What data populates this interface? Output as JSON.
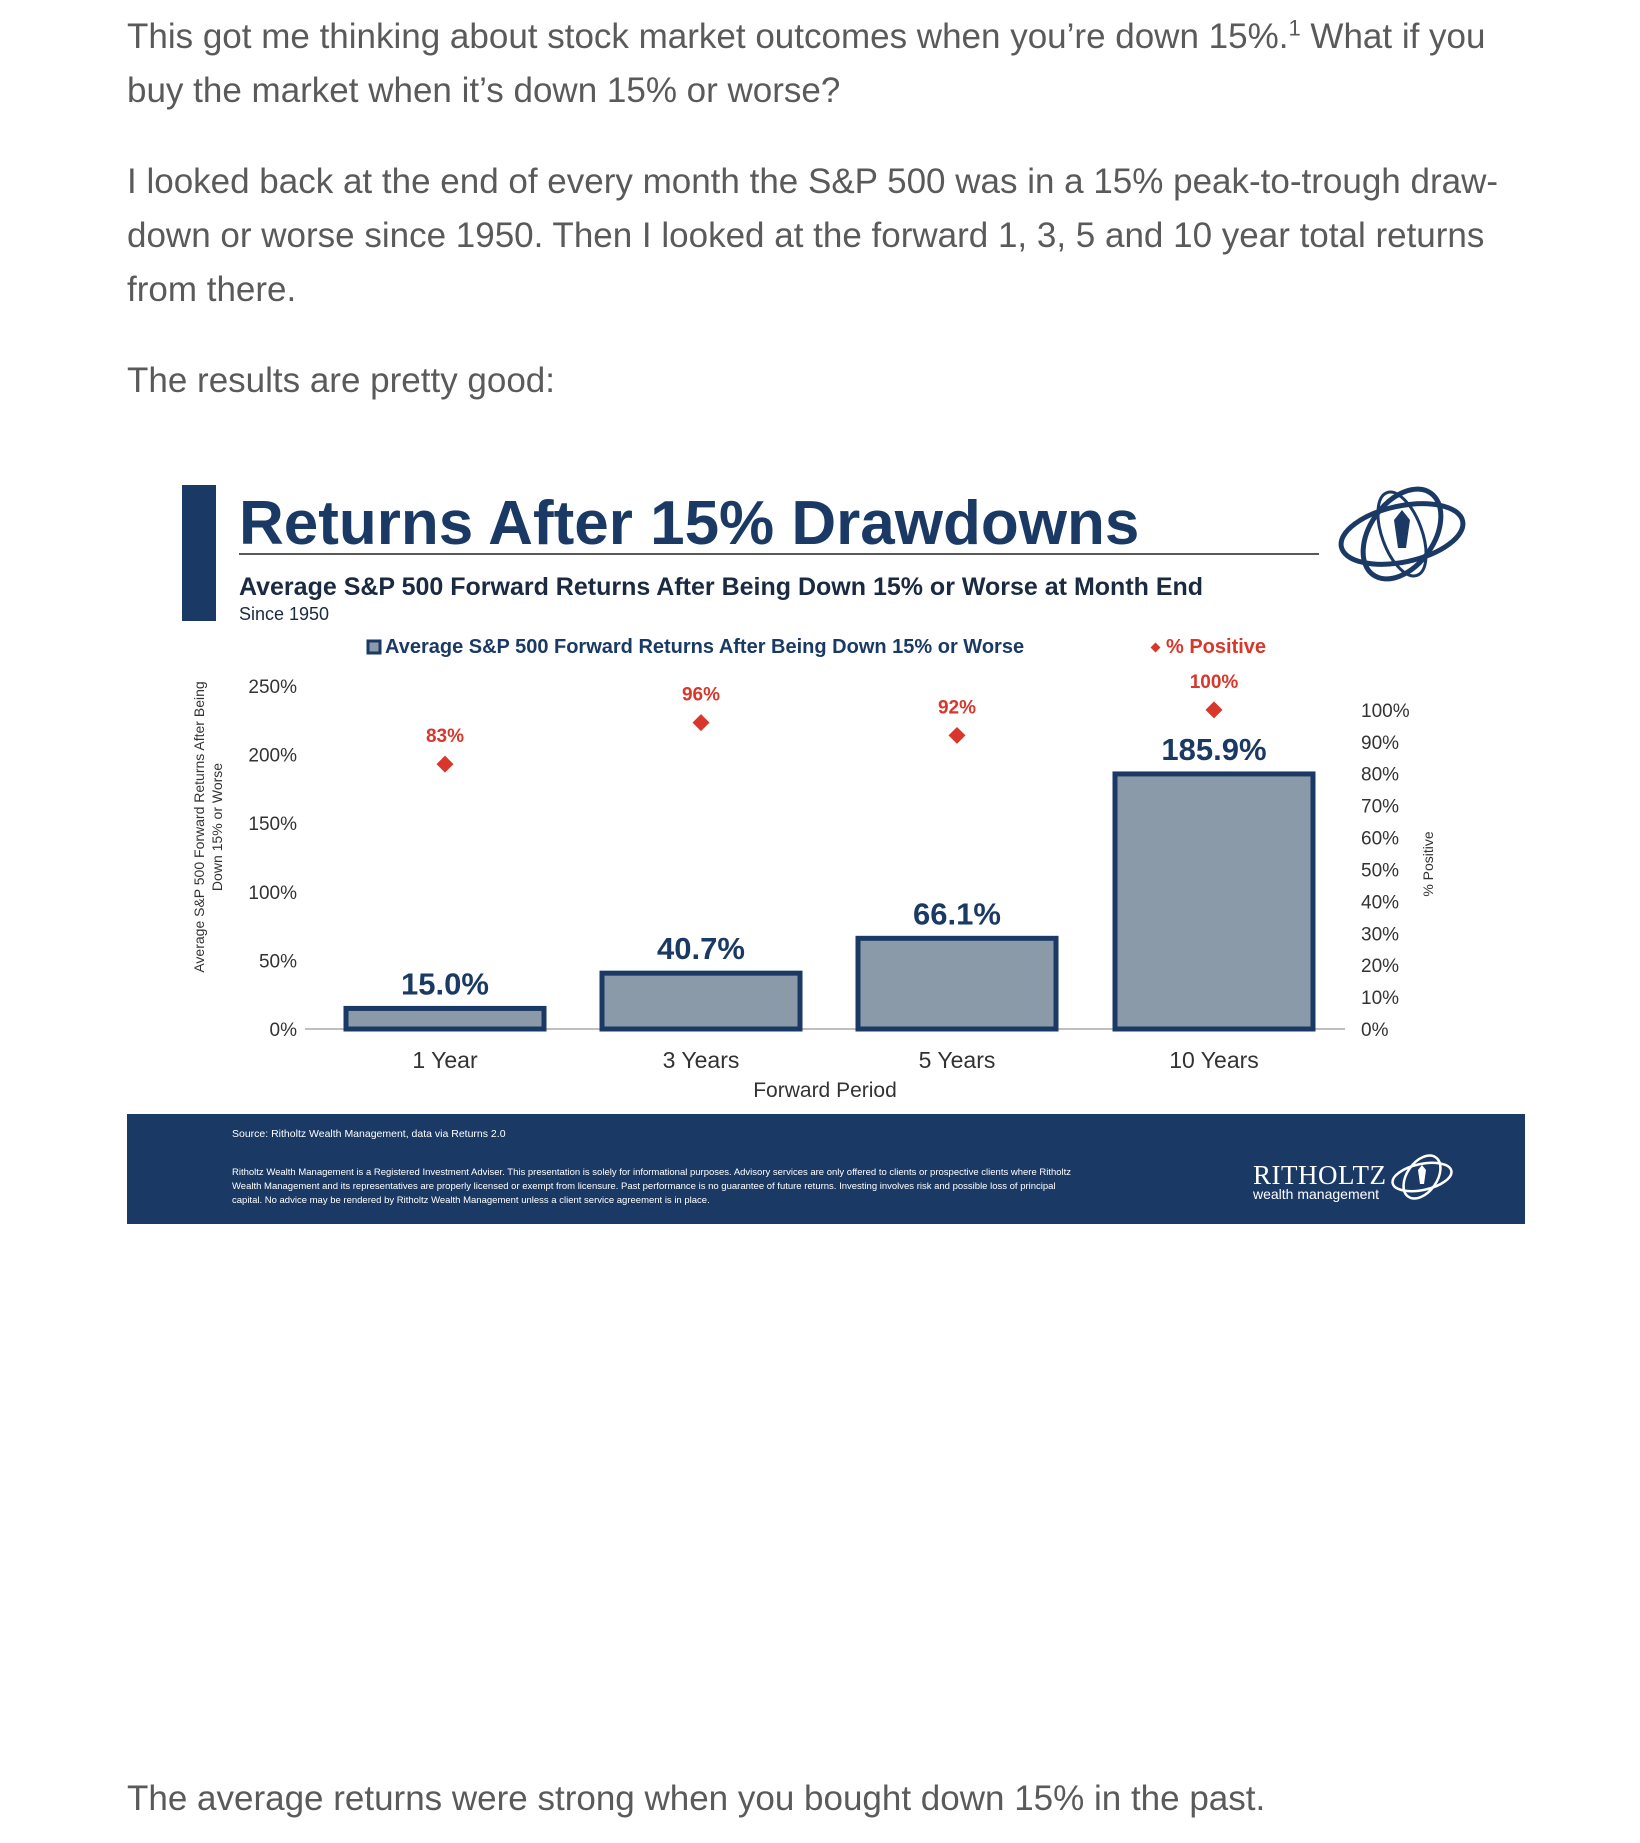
{
  "article": {
    "p1_main": "This got me thinking about stock market outcomes when you’re down 15%.",
    "p1_footnote": "1",
    "p1_rest": " What if you buy the market when it’s down 15% or worse?",
    "p2": "I looked back at the end of every month the S&P 500 was in a 15% peak-to-trough draw-down or worse since 1950. Then I looked at the forward 1, 3, 5 and 10 year total returns from there.",
    "p3": "The results are pretty good:",
    "p4": "The average returns were strong when you bought down 15% in the past."
  },
  "colors": {
    "navy": "#1a3a65",
    "bar_fill": "#8a9aa8",
    "diamond": "#d9372b",
    "text_gray": "#5a5a5a"
  },
  "chart_data": {
    "type": "bar",
    "title": "Returns After 15% Drawdowns",
    "subtitle": "Average S&P 500 Forward Returns After Being Down 15% or Worse at Month End",
    "subtitle2": "Since 1950",
    "xlabel": "Forward Period",
    "ylabel_line1": "Average S&P 500 Forward Returns After Being",
    "ylabel_line2": "Down 15% or Worse",
    "y2label": "% Positive",
    "categories": [
      "1 Year",
      "3 Years",
      "5 Years",
      "10 Years"
    ],
    "series": [
      {
        "name": "Average S&P 500 Forward Returns After Being Down 15% or Worse",
        "type": "bar",
        "axis": "left",
        "values": [
          15.0,
          40.7,
          66.1,
          185.9
        ],
        "labels": [
          "15.0%",
          "40.7%",
          "66.1%",
          "185.9%"
        ]
      },
      {
        "name": "% Positive",
        "type": "scatter",
        "marker": "diamond",
        "axis": "right",
        "values": [
          83,
          96,
          92,
          100
        ],
        "labels": [
          "83%",
          "96%",
          "92%",
          "100%"
        ]
      }
    ],
    "yticks": [
      "0%",
      "50%",
      "100%",
      "150%",
      "200%",
      "250%"
    ],
    "ylim": [
      0,
      250
    ],
    "y2ticks": [
      "0%",
      "10%",
      "20%",
      "30%",
      "40%",
      "50%",
      "60%",
      "70%",
      "80%",
      "90%",
      "100%"
    ],
    "y2lim": [
      0,
      110
    ],
    "legend_position": "top",
    "grid": false,
    "source": "Source: Ritholtz Wealth Management, data via Returns 2.0",
    "disclaimer": "Ritholtz Wealth Management is a Registered Investment Adviser. This presentation is solely for informational purposes. Advisory services are only offered to clients or prospective clients where Ritholtz Wealth Management and its representatives are properly licensed or exempt from licensure. Past performance is no guarantee of future returns. Investing involves risk and possible loss of principal capital. No advice may be rendered by Ritholtz Wealth Management unless a client service agreement is in place.",
    "brand_name": "RITHOLTZ",
    "brand_sub": "wealth management"
  }
}
